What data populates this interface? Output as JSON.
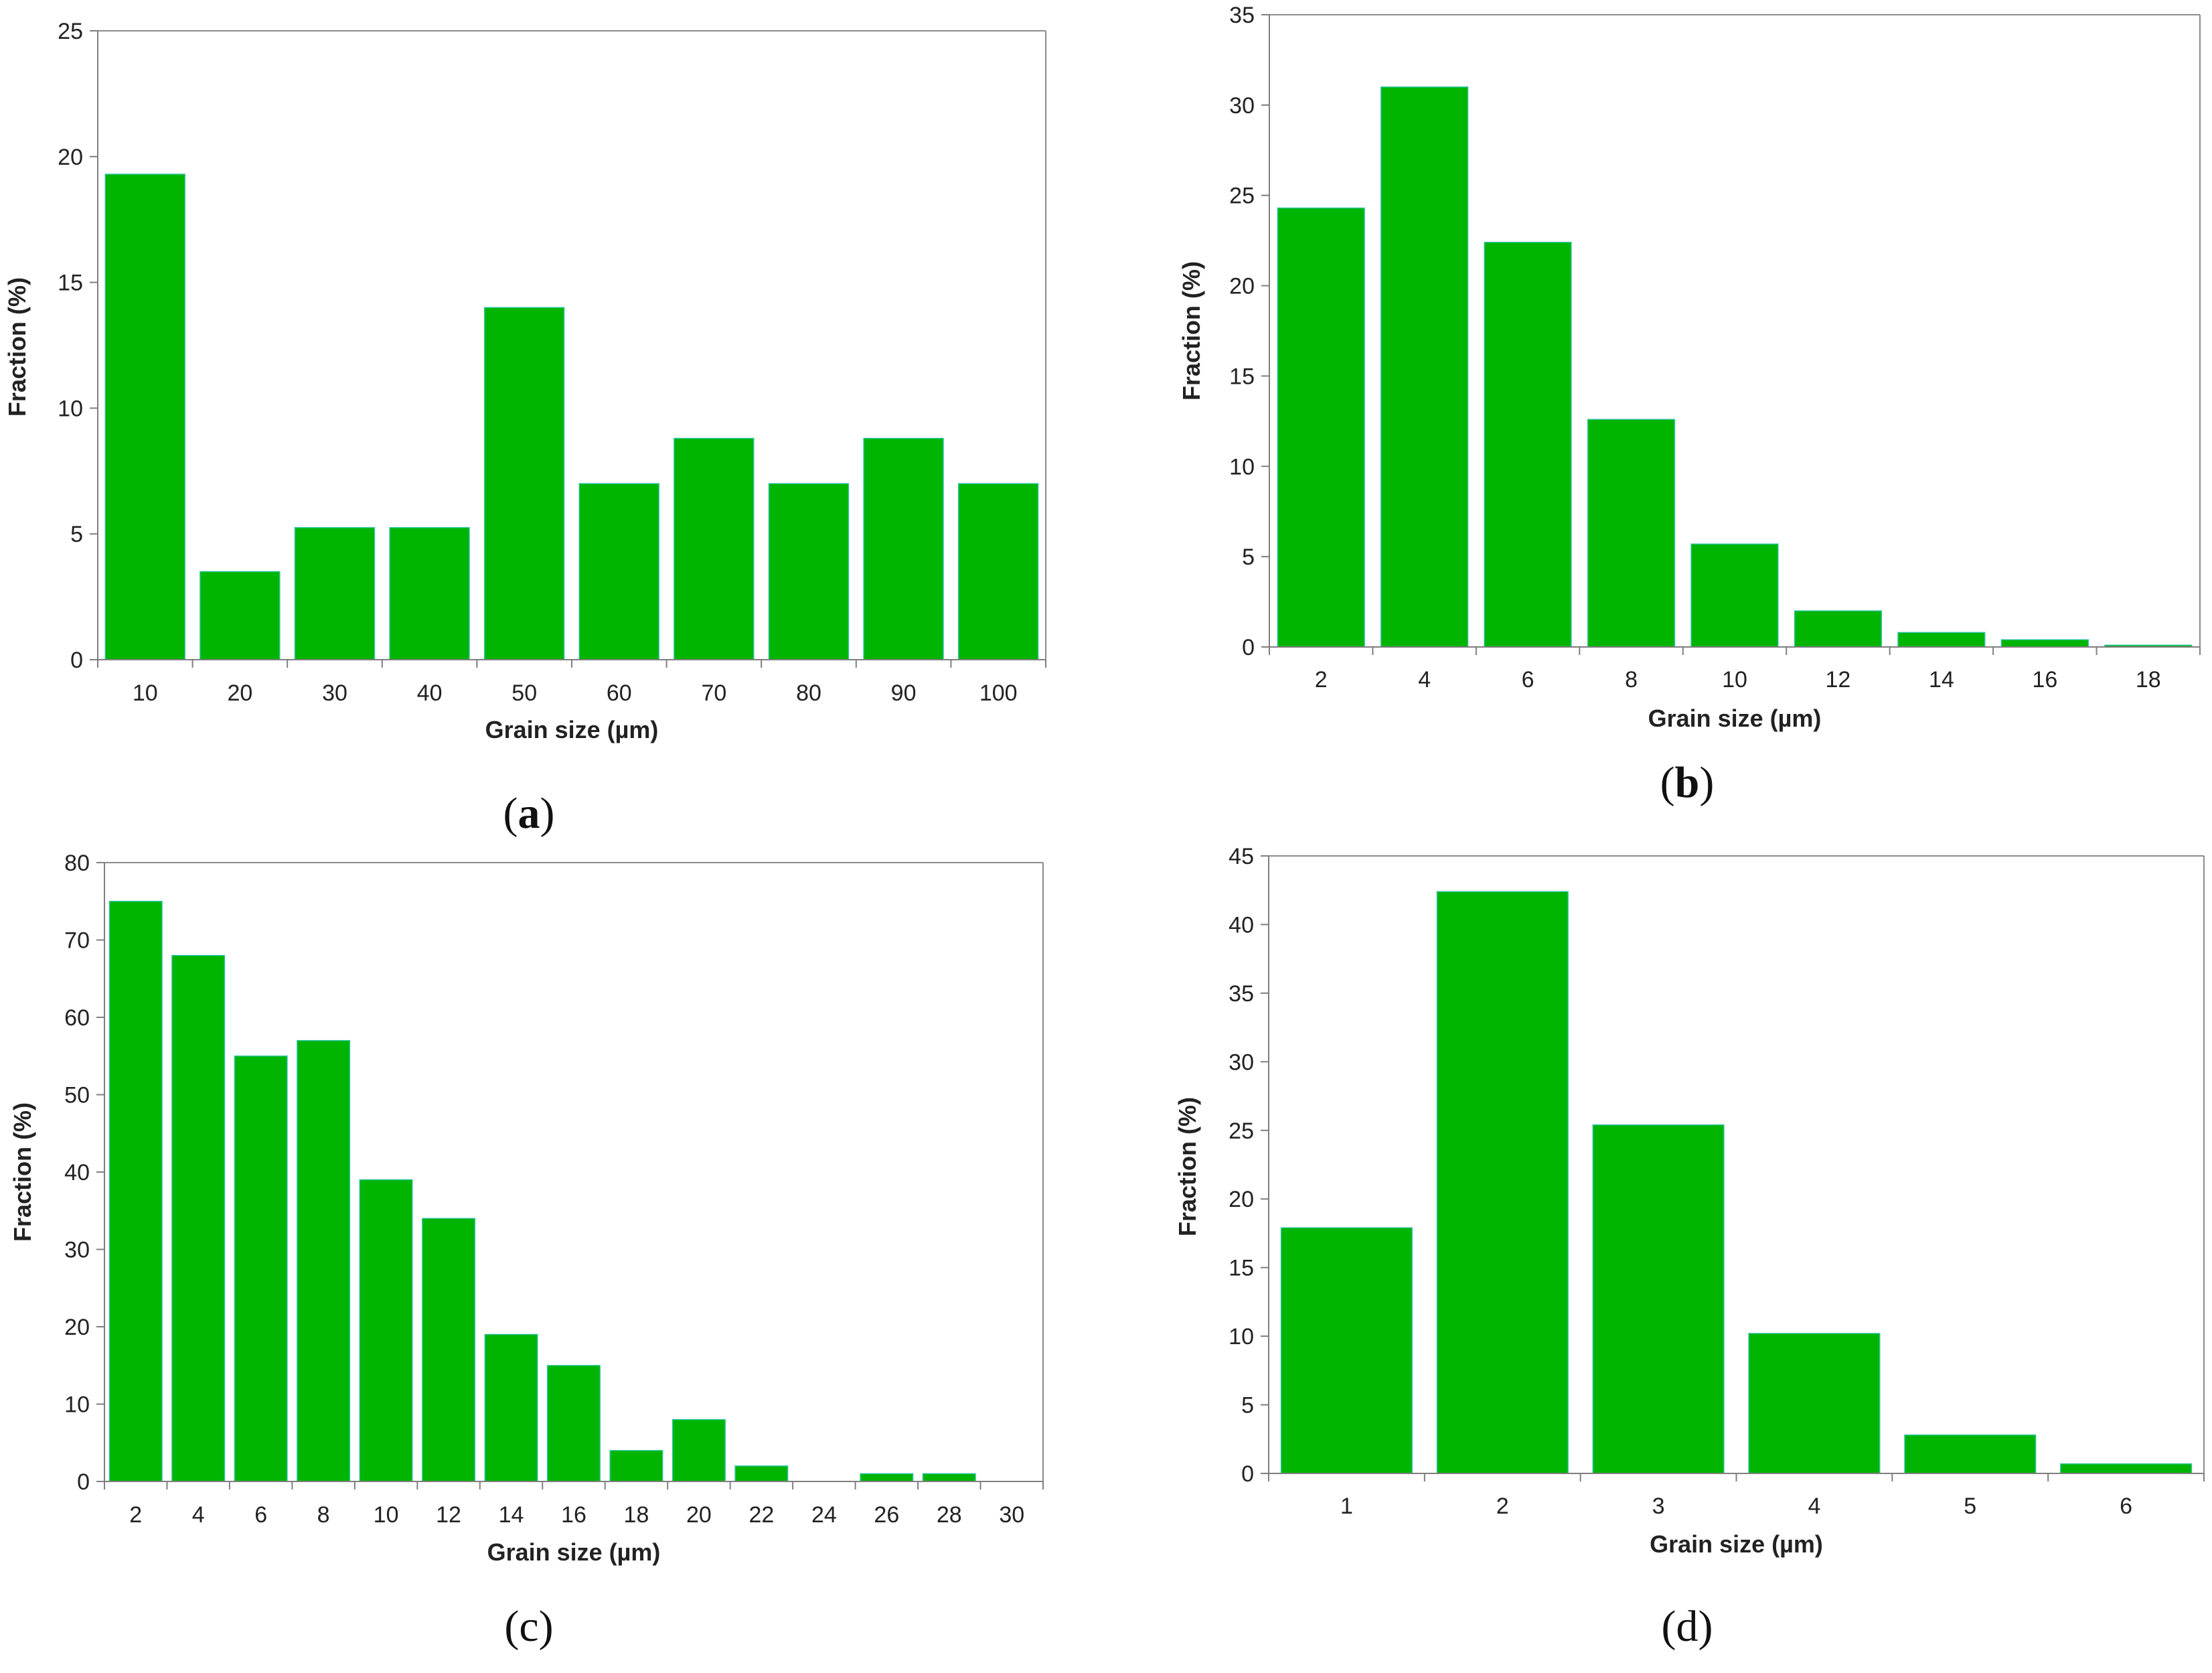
{
  "chart_data": [
    {
      "type": "bar",
      "panel": "a",
      "caption_open": "(",
      "caption_letter": "a",
      "caption_close": ")",
      "caption_bold": true,
      "xlabel": "Grain size (µm)",
      "ylabel": "Fraction (%)",
      "categories": [
        "10",
        "20",
        "30",
        "40",
        "50",
        "60",
        "70",
        "80",
        "90",
        "100"
      ],
      "values": [
        19.3,
        3.5,
        5.25,
        5.25,
        14.0,
        7.0,
        8.8,
        7.0,
        8.8,
        7.0
      ],
      "ylim": [
        0,
        25
      ],
      "yticks": [
        0,
        5,
        10,
        15,
        20,
        25
      ],
      "grid": false
    },
    {
      "type": "bar",
      "panel": "b",
      "caption_open": "(",
      "caption_letter": "b",
      "caption_close": ")",
      "caption_bold": true,
      "xlabel": "Grain size (µm)",
      "ylabel": "Fraction (%)",
      "categories": [
        "2",
        "4",
        "6",
        "8",
        "10",
        "12",
        "14",
        "16",
        "18"
      ],
      "values": [
        24.3,
        31.0,
        22.4,
        12.6,
        5.7,
        2.0,
        0.8,
        0.4,
        0.1
      ],
      "ylim": [
        0,
        35
      ],
      "yticks": [
        0,
        5,
        10,
        15,
        20,
        25,
        30,
        35
      ],
      "grid": false
    },
    {
      "type": "bar",
      "panel": "c",
      "caption_open": "(",
      "caption_letter": "c",
      "caption_close": ")",
      "caption_bold": false,
      "xlabel": "Grain size (µm)",
      "ylabel": "Fraction (%)",
      "categories": [
        "2",
        "4",
        "6",
        "8",
        "10",
        "12",
        "14",
        "16",
        "18",
        "20",
        "22",
        "24",
        "26",
        "28",
        "30"
      ],
      "values": [
        75,
        68,
        55,
        57,
        39,
        34,
        19,
        15,
        4,
        8,
        2,
        0,
        1,
        1,
        0
      ],
      "ylim": [
        0,
        80
      ],
      "yticks": [
        0,
        10,
        20,
        30,
        40,
        50,
        60,
        70,
        80
      ],
      "grid": false
    },
    {
      "type": "bar",
      "panel": "d",
      "caption_open": "(",
      "caption_letter": "d",
      "caption_close": ")",
      "caption_bold": false,
      "xlabel": "Grain size (µm)",
      "ylabel": "Fraction (%)",
      "categories": [
        "1",
        "2",
        "3",
        "4",
        "5",
        "6"
      ],
      "values": [
        17.9,
        42.4,
        25.4,
        10.2,
        2.8,
        0.7
      ],
      "ylim": [
        0,
        45
      ],
      "yticks": [
        0,
        5,
        10,
        15,
        20,
        25,
        30,
        35,
        40,
        45
      ],
      "grid": false
    }
  ],
  "colors": {
    "bar_fill": "#00b400",
    "bar_edge": "#2ec4a0",
    "axis": "#7f7f7f",
    "text": "#222222"
  }
}
